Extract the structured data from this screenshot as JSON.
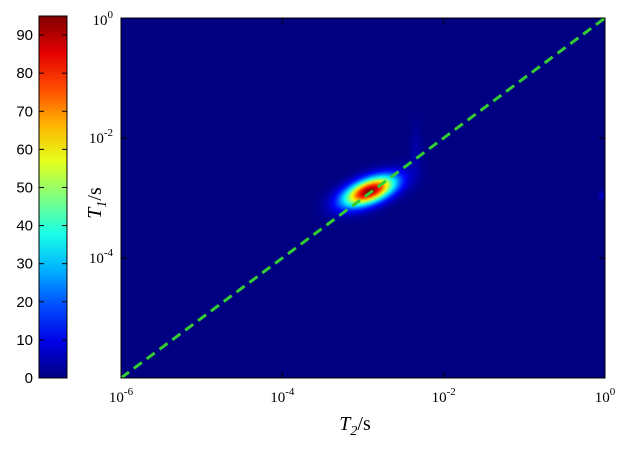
{
  "chart_data": {
    "type": "heatmap",
    "title": "",
    "xlabel": {
      "symbol": "T",
      "sub": "2",
      "unit": "/s"
    },
    "ylabel": {
      "symbol": "T",
      "sub": "1",
      "unit": "/s"
    },
    "x_scale": "log",
    "y_scale": "log",
    "xlim": [
      1e-06,
      1
    ],
    "ylim": [
      1e-06,
      1
    ],
    "x_ticks": [
      {
        "value": 1e-06,
        "base": "10",
        "exp": "-6"
      },
      {
        "value": 0.0001,
        "base": "10",
        "exp": "-4"
      },
      {
        "value": 0.01,
        "base": "10",
        "exp": "-2"
      },
      {
        "value": 1,
        "base": "10",
        "exp": "0"
      }
    ],
    "y_ticks": [
      {
        "value": 0.0001,
        "base": "10",
        "exp": "-4"
      },
      {
        "value": 0.01,
        "base": "10",
        "exp": "-2"
      },
      {
        "value": 1,
        "base": "10",
        "exp": "0"
      }
    ],
    "background_value": 0,
    "colormap": "jet",
    "colorbar": {
      "min": 0,
      "max": 95,
      "ticks": [
        0,
        10,
        20,
        30,
        40,
        50,
        60,
        70,
        80,
        90
      ]
    },
    "peaks": [
      {
        "T2": 0.0012,
        "T1": 0.0013,
        "intensity": 95
      },
      {
        "T2": 0.0045,
        "T1": 0.006,
        "intensity": 4
      },
      {
        "T2": 0.9,
        "T1": 0.0011,
        "intensity": 8
      }
    ],
    "reference_line": {
      "description": "T1 = T2",
      "style": "dashed",
      "color": "#33cc33"
    }
  }
}
